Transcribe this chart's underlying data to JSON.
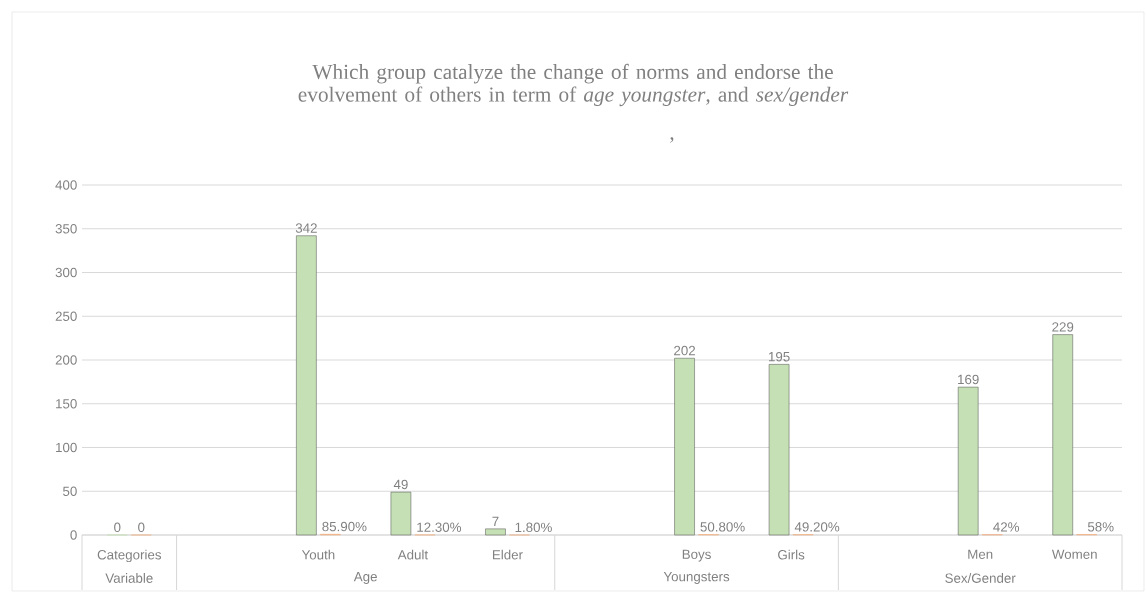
{
  "chart_data": {
    "type": "bar",
    "title": "Which group catalyze the change of norms and endorse the evolvement of others in term of *age youngster*, and *sex/gender*",
    "categories": [
      "Categories",
      null,
      "Youth",
      "Adult",
      "Elder",
      null,
      "Boys",
      "Girls",
      null,
      "Men",
      "Women"
    ],
    "series": [
      {
        "color": "#c5e0b4",
        "values": [
          0,
          null,
          342,
          49,
          7,
          null,
          202,
          195,
          null,
          169,
          229
        ],
        "value_labels": [
          "0",
          null,
          "342",
          "49",
          "7",
          null,
          "202",
          "195",
          null,
          "169",
          "229"
        ]
      },
      {
        "color": "#f4b183",
        "values": [
          0,
          null,
          0.859,
          0.123,
          0.018,
          null,
          0.508,
          0.492,
          null,
          0.42,
          0.58
        ],
        "value_labels": [
          "0",
          null,
          "85.90%",
          "12.30%",
          "1.80%",
          null,
          "50.80%",
          "49.20%",
          null,
          "42%",
          "58%"
        ]
      }
    ],
    "ylim": [
      0,
      400
    ],
    "yticks": [
      0,
      50,
      100,
      150,
      200,
      250,
      300,
      350,
      400
    ],
    "grid": "y",
    "annotations": [
      ",",
      "Variable",
      "Age",
      "Youngsters",
      "Sex/Gender"
    ]
  }
}
